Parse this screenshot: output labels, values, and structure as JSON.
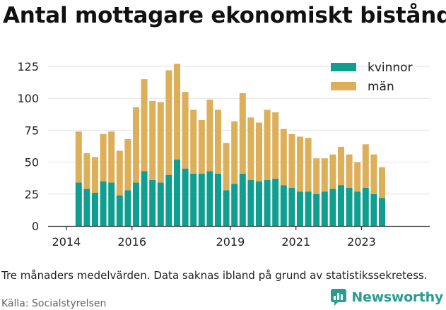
{
  "title": "Antal mottagare ekonomiskt bistånd",
  "note": "Tre månaders medelvärden. Data saknas ibland på grund av statistikssekretess.",
  "source": "Källa: Socialstyrelsen",
  "brand": "Newsworthy",
  "colors": {
    "kvinnor": "#0f9e8f",
    "man": "#dcaf58",
    "grid": "#e3e3e3",
    "brand": "#2a9d8f"
  },
  "chart_data": {
    "type": "bar",
    "stacked": true,
    "x": [
      "2014-Q2",
      "2014-Q3",
      "2014-Q4",
      "2015-Q1",
      "2015-Q2",
      "2015-Q3",
      "2015-Q4",
      "2016-Q1",
      "2016-Q2",
      "2016-Q3",
      "2016-Q4",
      "2017-Q1",
      "2017-Q2",
      "2017-Q3",
      "2017-Q4",
      "2018-Q1",
      "2018-Q2",
      "2018-Q3",
      "2018-Q4",
      "2019-Q1",
      "2019-Q2",
      "2019-Q3",
      "2019-Q4",
      "2020-Q1",
      "2020-Q2",
      "2020-Q3",
      "2020-Q4",
      "2021-Q1",
      "2021-Q2",
      "2021-Q3",
      "2021-Q4",
      "2022-Q1",
      "2022-Q2",
      "2022-Q3",
      "2022-Q4",
      "2023-Q1",
      "2023-Q2",
      "2023-Q3"
    ],
    "series": [
      {
        "name": "kvinnor",
        "color": "#0f9e8f",
        "values": [
          34,
          29,
          26,
          35,
          34,
          24,
          28,
          34,
          43,
          36,
          34,
          40,
          52,
          45,
          41,
          41,
          43,
          41,
          28,
          33,
          41,
          36,
          35,
          36,
          37,
          32,
          30,
          27,
          27,
          25,
          27,
          29,
          32,
          30,
          27,
          30,
          25,
          22
        ]
      },
      {
        "name": "män",
        "color": "#dcaf58",
        "values": [
          40,
          28,
          28,
          37,
          40,
          35,
          40,
          59,
          72,
          62,
          63,
          82,
          75,
          60,
          50,
          42,
          56,
          50,
          37,
          49,
          63,
          49,
          46,
          55,
          52,
          44,
          42,
          43,
          42,
          28,
          26,
          27,
          30,
          26,
          23,
          34,
          31,
          24
        ]
      }
    ],
    "xticks": [
      "2014",
      "2016",
      "2019",
      "2021",
      "2023"
    ],
    "yticks": [
      0,
      25,
      50,
      75,
      100,
      125
    ],
    "ylim": [
      0,
      130
    ],
    "legend": [
      "kvinnor",
      "män"
    ],
    "legend_position": "top-right",
    "grid": true
  }
}
